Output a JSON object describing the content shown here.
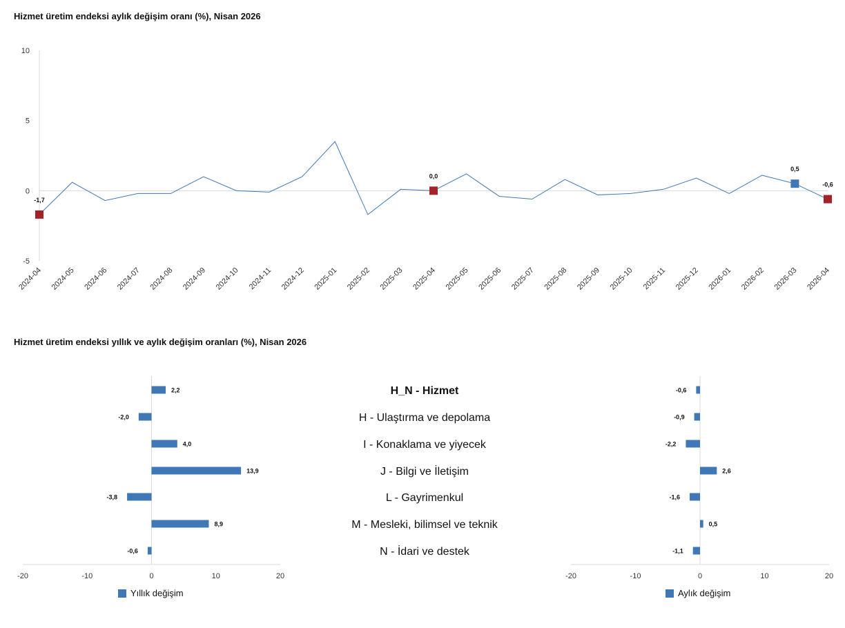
{
  "title1": "Hizmet üretim endeksi aylık değişim oranı (%), Nisan 2026",
  "title2": "Hizmet üretim endeksi yıllık ve aylık değişim oranları (%), Nisan 2026",
  "colors": {
    "line": "#3f78b5",
    "bar": "#3f78b5",
    "highlight_red": "#a3232b",
    "highlight_blue": "#3f78b5",
    "grid": "#d9d9d9"
  },
  "legend": {
    "yearly": "Yıllık değişim",
    "monthly": "Aylık değişim"
  },
  "chart_data": [
    {
      "type": "line",
      "x": [
        "2024-04",
        "2024-05",
        "2024-06",
        "2024-07",
        "2024-08",
        "2024-09",
        "2024-10",
        "2024-11",
        "2024-12",
        "2025-01",
        "2025-02",
        "2025-03",
        "2025-04",
        "2025-05",
        "2025-06",
        "2025-07",
        "2025-08",
        "2025-09",
        "2025-10",
        "2025-11",
        "2025-12",
        "2026-01",
        "2026-02",
        "2026-03",
        "2026-04"
      ],
      "values": [
        -1.7,
        0.6,
        -0.7,
        -0.2,
        -0.2,
        1.0,
        0.0,
        -0.1,
        1.0,
        3.5,
        -1.7,
        0.1,
        0.0,
        1.2,
        -0.4,
        -0.6,
        0.8,
        -0.3,
        -0.2,
        0.1,
        0.9,
        -0.2,
        1.1,
        0.5,
        -0.6
      ],
      "ylim": [
        -5,
        10
      ],
      "yticks": [
        -5,
        0,
        5,
        10
      ],
      "markers": [
        {
          "x": "2024-04",
          "value": -1.7,
          "label": "-1,7",
          "color": "#a3232b"
        },
        {
          "x": "2025-04",
          "value": 0.0,
          "label": "0,0",
          "color": "#a3232b"
        },
        {
          "x": "2026-03",
          "value": 0.5,
          "label": "0,5",
          "color": "#3f78b5"
        },
        {
          "x": "2026-04",
          "value": -0.6,
          "label": "-0,6",
          "color": "#a3232b"
        }
      ]
    },
    {
      "type": "bar",
      "orientation": "horizontal",
      "series": [
        {
          "name": "Yıllık değişim",
          "values": [
            2.2,
            -2.0,
            4.0,
            13.9,
            -3.8,
            8.9,
            -0.6
          ],
          "labels": [
            "2,2",
            "-2,0",
            "4,0",
            "13,9",
            "-3,8",
            "8,9",
            "-0,6"
          ]
        }
      ],
      "xlim": [
        -20,
        20
      ],
      "xticks": [
        -20,
        -10,
        0,
        10,
        20
      ]
    },
    {
      "type": "bar",
      "orientation": "horizontal",
      "series": [
        {
          "name": "Aylık değişim",
          "values": [
            -0.6,
            -0.9,
            -2.2,
            2.6,
            -1.6,
            0.5,
            -1.1
          ],
          "labels": [
            "-0,6",
            "-0,9",
            "-2,2",
            "2,6",
            "-1,6",
            "0,5",
            "-1,1"
          ]
        }
      ],
      "xlim": [
        -20,
        20
      ],
      "xticks": [
        -20,
        -10,
        0,
        10,
        20
      ]
    }
  ],
  "categories": [
    "H_N - Hizmet",
    "H - Ulaştırma ve depolama",
    "I - Konaklama ve yiyecek",
    "J - Bilgi ve İletişim",
    "L - Gayrimenkul",
    "M - Mesleki, bilimsel ve teknik",
    "N - İdari ve destek"
  ]
}
